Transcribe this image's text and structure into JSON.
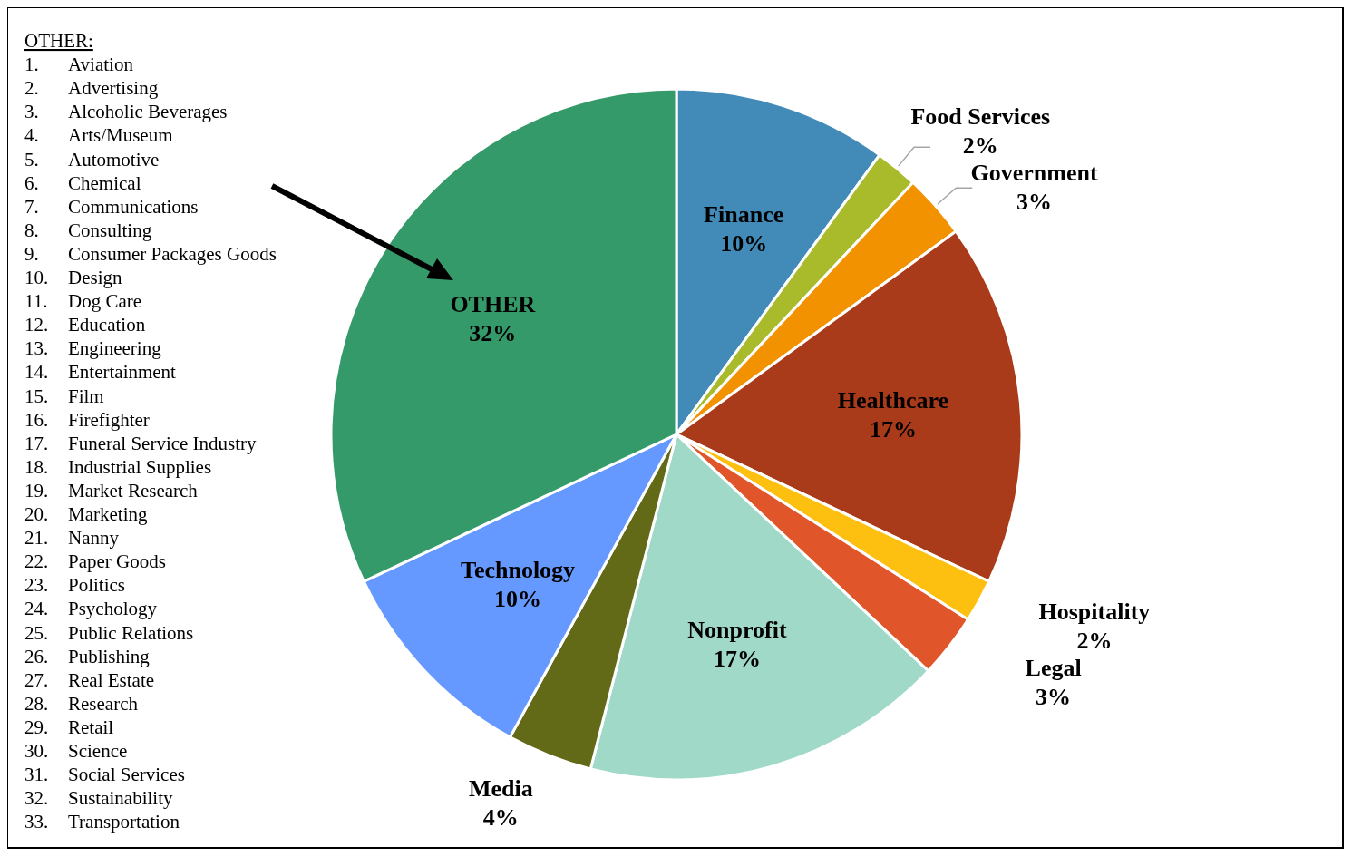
{
  "chart_data": {
    "type": "pie",
    "categories": [
      "Finance",
      "Food Services",
      "Government",
      "Healthcare",
      "Hospitality",
      "Legal",
      "Nonprofit",
      "Media",
      "Technology",
      "OTHER"
    ],
    "values": [
      10,
      2,
      3,
      17,
      2,
      3,
      17,
      4,
      10,
      32
    ],
    "value_labels": [
      "10%",
      "2%",
      "3%",
      "17%",
      "2%",
      "3%",
      "17%",
      "4%",
      "10%",
      "32%"
    ],
    "colors": [
      "#428bb8",
      "#a9bb2a",
      "#f39200",
      "#a93a1a",
      "#fdc010",
      "#e0562a",
      "#a0d9c8",
      "#636a17",
      "#6699ff",
      "#359a6a"
    ],
    "annotations": [
      "OTHER:",
      "1. Aviation",
      "2. Advertising",
      "3. Alcoholic Beverages",
      "4. Arts/Museum",
      "5. Automotive",
      "6. Chemical",
      "7. Communications",
      "8. Consulting",
      "9. Consumer Packages Goods",
      "10. Design",
      "11. Dog Care",
      "12. Education",
      "13. Engineering",
      "14. Entertainment",
      "15. Film",
      "16. Firefighter",
      "17. Funeral Service Industry",
      "18. Industrial Supplies",
      "19. Market Research",
      "20. Marketing",
      "21. Nanny",
      "22. Paper Goods",
      "23. Politics",
      "24. Psychology",
      "25. Public Relations",
      "26. Publishing",
      "27. Real Estate",
      "28. Research",
      "29. Retail",
      "30. Science",
      "31. Social Services",
      "32. Sustainability",
      "33. Transportation"
    ]
  }
}
